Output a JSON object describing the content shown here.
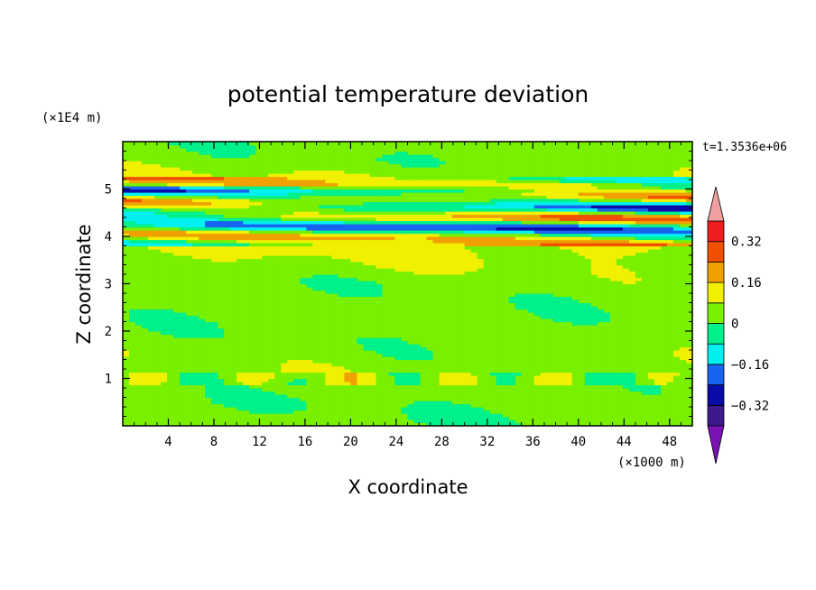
{
  "chart_data": {
    "type": "heatmap",
    "title": "potential temperature deviation",
    "xlabel": "X coordinate",
    "ylabel": "Z coordinate",
    "x_unit": "(×1000 m)",
    "y_unit": "(×1E4 m)",
    "time_label": "t=1.3536e+06",
    "xlim": [
      0,
      50
    ],
    "ylim": [
      0,
      6
    ],
    "x_ticks": [
      "4",
      "8",
      "12",
      "16",
      "20",
      "24",
      "28",
      "32",
      "36",
      "40",
      "44",
      "48"
    ],
    "y_ticks": [
      "1",
      "2",
      "3",
      "4",
      "5"
    ],
    "x_tick_values": [
      4,
      8,
      12,
      16,
      20,
      24,
      28,
      32,
      36,
      40,
      44,
      48
    ],
    "y_tick_values": [
      1,
      2,
      3,
      4,
      5
    ],
    "colorbar": {
      "labels": [
        "0.32",
        "0.16",
        "0",
        "−0.16",
        "−0.32"
      ],
      "label_values": [
        0.32,
        0.16,
        0,
        -0.16,
        -0.32
      ],
      "levels": [
        -0.4,
        -0.32,
        -0.24,
        -0.16,
        -0.08,
        0,
        0.08,
        0.16,
        0.24,
        0.32,
        0.4
      ],
      "colors": [
        "#3d1a8c",
        "#0a0aa8",
        "#1864f0",
        "#00f0f0",
        "#00f08c",
        "#78f000",
        "#f0f000",
        "#f0a000",
        "#f05000",
        "#f01e1e"
      ],
      "under_color": "#7b12b3",
      "over_color": "#f0a0a0"
    },
    "field_description_bands": [
      {
        "z": 0.5,
        "value": 0.02
      },
      {
        "z": 1.0,
        "value": 0.05
      },
      {
        "z": 2.0,
        "value": 0.03
      },
      {
        "z": 3.0,
        "value": 0.03
      },
      {
        "z": 4.0,
        "value": 0.12
      },
      {
        "z": 4.2,
        "value": -0.2
      },
      {
        "z": 4.4,
        "value": 0.15
      },
      {
        "z": 4.6,
        "value": -0.1
      },
      {
        "z": 4.8,
        "value": 0.12
      },
      {
        "z": 5.0,
        "value": -0.08
      },
      {
        "z": 5.1,
        "value": 0.1
      },
      {
        "z": 5.6,
        "value": 0.03
      }
    ]
  }
}
